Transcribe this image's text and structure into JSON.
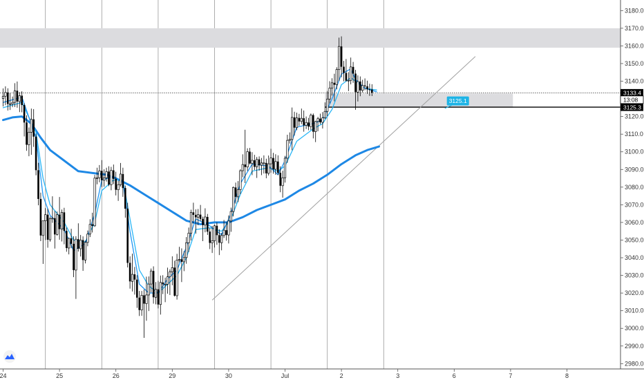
{
  "chart_data": {
    "type": "candlestick",
    "y_axis": {
      "range": [
        2977,
        3186
      ],
      "ticks": [
        2980,
        2990,
        3000,
        3010,
        3020,
        3030,
        3040,
        3050,
        3060,
        3070,
        3080,
        3090,
        3100,
        3110,
        3120,
        3130,
        3140,
        3150,
        3160,
        3170,
        3180
      ],
      "tick_labels": [
        "2980.0",
        "2990.0",
        "3000.0",
        "3010.0",
        "3020.0",
        "3030.0",
        "3040.0",
        "3050.0",
        "3060.0",
        "3070.0",
        "3080.0",
        "3090.0",
        "3100.0",
        "3110.0",
        "3120.0",
        "3130.0",
        "3140.0",
        "3150.0",
        "3160.0",
        "3170.0",
        "3180.0"
      ]
    },
    "x_axis": {
      "tick_labels": [
        "24",
        "25",
        "26",
        "29",
        "30",
        "Jul",
        "2",
        "3",
        "6",
        "7",
        "8"
      ],
      "tick_index": [
        0,
        24,
        48,
        72,
        96,
        120,
        144,
        168,
        192,
        216,
        240
      ]
    },
    "session_separators": [
      18,
      42,
      66,
      90,
      114,
      138,
      162
    ],
    "candles": [
      [
        3130.2,
        3135.9,
        3125.7,
        3131.5
      ],
      [
        3131.5,
        3137.1,
        3126.4,
        3133.6
      ],
      [
        3133.6,
        3136.0,
        3123.4,
        3127.1
      ],
      [
        3127.1,
        3133.2,
        3123.7,
        3127.2
      ],
      [
        3127.2,
        3131.3,
        3125.3,
        3128.0
      ],
      [
        3128.0,
        3138.9,
        3125.4,
        3134.6
      ],
      [
        3134.6,
        3139.8,
        3125.0,
        3128.5
      ],
      [
        3128.5,
        3133.8,
        3122.5,
        3131.8
      ],
      [
        3131.8,
        3134.3,
        3122.4,
        3126.5
      ],
      [
        3126.5,
        3127.5,
        3108.7,
        3116.6
      ],
      [
        3116.6,
        3120.7,
        3100.6,
        3104.0
      ],
      [
        3104.0,
        3113.8,
        3097.5,
        3111.1
      ],
      [
        3111.1,
        3124.5,
        3098.3,
        3118.4
      ],
      [
        3118.4,
        3124.2,
        3102.8,
        3108.6
      ],
      [
        3108.6,
        3110.2,
        3086.7,
        3089.6
      ],
      [
        3089.6,
        3093.8,
        3069.7,
        3073.3
      ],
      [
        3073.3,
        3076.9,
        3049.4,
        3052.6
      ],
      [
        3052.6,
        3060.9,
        3036.5,
        3060.9
      ],
      [
        3060.9,
        3068.1,
        3050.0,
        3064.4
      ],
      [
        3064.4,
        3067.7,
        3045.7,
        3050.2
      ],
      [
        3050.2,
        3063.3,
        3049.1,
        3062.2
      ],
      [
        3062.2,
        3074.8,
        3059.8,
        3062.4
      ],
      [
        3062.4,
        3066.5,
        3045.2,
        3053.2
      ],
      [
        3053.2,
        3066.2,
        3052.5,
        3064.4
      ],
      [
        3064.4,
        3074.4,
        3050.2,
        3056.2
      ],
      [
        3056.2,
        3067.3,
        3049.2,
        3065.7
      ],
      [
        3065.7,
        3068.3,
        3047.6,
        3055.2
      ],
      [
        3055.2,
        3057.1,
        3043.4,
        3045.5
      ],
      [
        3045.5,
        3051.3,
        3041.9,
        3051.0
      ],
      [
        3051.0,
        3056.4,
        3045.4,
        3047.9
      ],
      [
        3047.9,
        3052.2,
        3029.0,
        3033.0
      ],
      [
        3033.0,
        3052.2,
        3016.7,
        3050.5
      ],
      [
        3050.5,
        3059.5,
        3043.5,
        3045.1
      ],
      [
        3045.1,
        3052.9,
        3040.7,
        3050.0
      ],
      [
        3050.0,
        3052.1,
        3032.6,
        3038.7
      ],
      [
        3038.7,
        3049.8,
        3036.8,
        3048.7
      ],
      [
        3048.7,
        3055.4,
        3046.5,
        3053.4
      ],
      [
        3053.4,
        3061.8,
        3051.7,
        3058.9
      ],
      [
        3058.9,
        3065.5,
        3054.3,
        3058.1
      ],
      [
        3058.1,
        3086.9,
        3057.5,
        3085.1
      ],
      [
        3085.1,
        3091.0,
        3081.6,
        3085.3
      ],
      [
        3085.3,
        3092.5,
        3082.7,
        3089.2
      ],
      [
        3089.2,
        3095.3,
        3080.0,
        3083.9
      ],
      [
        3083.9,
        3090.1,
        3080.2,
        3085.3
      ],
      [
        3085.3,
        3091.0,
        3083.1,
        3088.8
      ],
      [
        3088.8,
        3091.8,
        3080.5,
        3081.4
      ],
      [
        3081.4,
        3091.5,
        3078.2,
        3089.5
      ],
      [
        3089.5,
        3092.8,
        3081.7,
        3084.7
      ],
      [
        3084.7,
        3088.7,
        3075.3,
        3078.5
      ],
      [
        3078.5,
        3083.6,
        3072.2,
        3081.4
      ],
      [
        3081.4,
        3093.7,
        3080.3,
        3087.4
      ],
      [
        3087.4,
        3091.0,
        3074.5,
        3079.5
      ],
      [
        3079.5,
        3080.9,
        3062.7,
        3067.8
      ],
      [
        3067.8,
        3071.1,
        3034.5,
        3037.1
      ],
      [
        3037.1,
        3040.8,
        3022.5,
        3026.6
      ],
      [
        3026.6,
        3042.3,
        3020.9,
        3030.6
      ],
      [
        3030.6,
        3034.8,
        3019.1,
        3027.6
      ],
      [
        3027.6,
        3030.1,
        3011.6,
        3017.4
      ],
      [
        3017.4,
        3021.2,
        3007.0,
        3010.4
      ],
      [
        3010.4,
        3021.2,
        3007.1,
        3018.7
      ],
      [
        3018.7,
        3022.0,
        2994.6,
        3014.0
      ],
      [
        3014.0,
        3029.3,
        3004.3,
        3018.9
      ],
      [
        3018.9,
        3029.4,
        3009.8,
        3025.1
      ],
      [
        3025.1,
        3033.9,
        3020.3,
        3032.5
      ],
      [
        3032.5,
        3035.1,
        3014.0,
        3017.6
      ],
      [
        3017.6,
        3026.2,
        3013.6,
        3022.1
      ],
      [
        3022.1,
        3026.9,
        3011.3,
        3013.5
      ],
      [
        3013.5,
        3029.9,
        3007.8,
        3026.0
      ],
      [
        3026.0,
        3030.1,
        3019.4,
        3025.0
      ],
      [
        3025.0,
        3028.7,
        3014.8,
        3025.0
      ],
      [
        3025.0,
        3034.4,
        3019.6,
        3029.2
      ],
      [
        3029.2,
        3033.4,
        3018.9,
        3032.0
      ],
      [
        3032.0,
        3040.8,
        3024.4,
        3034.4
      ],
      [
        3034.4,
        3038.3,
        3018.0,
        3018.5
      ],
      [
        3018.5,
        3042.2,
        3016.3,
        3038.7
      ],
      [
        3038.7,
        3046.2,
        3037.4,
        3039.1
      ],
      [
        3039.1,
        3045.3,
        3026.2,
        3037.7
      ],
      [
        3037.7,
        3043.8,
        3032.4,
        3040.1
      ],
      [
        3040.1,
        3051.7,
        3036.6,
        3048.5
      ],
      [
        3048.5,
        3057.1,
        3043.2,
        3053.9
      ],
      [
        3053.9,
        3067.2,
        3049.8,
        3065.7
      ],
      [
        3065.7,
        3071.2,
        3059.4,
        3064.3
      ],
      [
        3064.3,
        3067.4,
        3053.6,
        3062.9
      ],
      [
        3062.9,
        3067.6,
        3058.4,
        3064.4
      ],
      [
        3064.4,
        3069.9,
        3060.8,
        3062.0
      ],
      [
        3062.0,
        3063.3,
        3049.4,
        3058.5
      ],
      [
        3058.5,
        3068.0,
        3054.4,
        3063.1
      ],
      [
        3063.1,
        3064.8,
        3052.9,
        3054.8
      ],
      [
        3054.8,
        3056.8,
        3044.9,
        3048.4
      ],
      [
        3048.4,
        3058.0,
        3042.7,
        3049.6
      ],
      [
        3049.6,
        3058.7,
        3045.8,
        3058.1
      ],
      [
        3058.1,
        3060.0,
        3047.3,
        3052.8
      ],
      [
        3052.8,
        3056.1,
        3041.5,
        3048.5
      ],
      [
        3048.5,
        3054.1,
        3044.2,
        3052.6
      ],
      [
        3052.6,
        3061.4,
        3051.2,
        3055.6
      ],
      [
        3055.6,
        3060.4,
        3049.7,
        3052.9
      ],
      [
        3052.9,
        3064.0,
        3048.1,
        3060.8
      ],
      [
        3060.8,
        3068.4,
        3054.7,
        3066.2
      ],
      [
        3066.2,
        3080.4,
        3063.4,
        3079.8
      ],
      [
        3079.8,
        3082.6,
        3070.7,
        3074.5
      ],
      [
        3074.5,
        3083.4,
        3071.5,
        3078.6
      ],
      [
        3078.6,
        3090.1,
        3076.0,
        3089.3
      ],
      [
        3089.3,
        3098.6,
        3085.6,
        3092.8
      ],
      [
        3092.8,
        3112.5,
        3082.3,
        3091.4
      ],
      [
        3091.4,
        3102.0,
        3089.2,
        3100.1
      ],
      [
        3100.1,
        3102.2,
        3092.8,
        3093.4
      ],
      [
        3093.4,
        3099.8,
        3086.8,
        3095.2
      ],
      [
        3095.2,
        3098.3,
        3089.7,
        3091.5
      ],
      [
        3091.5,
        3097.1,
        3085.2,
        3095.7
      ],
      [
        3095.7,
        3097.4,
        3089.4,
        3092.4
      ],
      [
        3092.4,
        3096.5,
        3086.8,
        3093.7
      ],
      [
        3093.7,
        3098.0,
        3087.7,
        3093.7
      ],
      [
        3093.7,
        3096.1,
        3085.0,
        3087.8
      ],
      [
        3087.8,
        3097.9,
        3086.6,
        3093.2
      ],
      [
        3093.2,
        3101.7,
        3088.2,
        3096.5
      ],
      [
        3096.5,
        3099.4,
        3087.6,
        3090.1
      ],
      [
        3090.1,
        3098.6,
        3087.0,
        3094.5
      ],
      [
        3094.5,
        3098.0,
        3086.8,
        3088.1
      ],
      [
        3088.1,
        3091.8,
        3077.1,
        3080.8
      ],
      [
        3080.8,
        3089.3,
        3074.0,
        3085.3
      ],
      [
        3085.3,
        3097.7,
        3082.6,
        3096.4
      ],
      [
        3096.4,
        3109.7,
        3093.8,
        3106.5
      ],
      [
        3106.5,
        3111.0,
        3104.7,
        3107.0
      ],
      [
        3107.0,
        3125.1,
        3100.9,
        3119.5
      ],
      [
        3119.5,
        3122.7,
        3109.2,
        3113.7
      ],
      [
        3113.7,
        3122.2,
        3112.2,
        3119.2
      ],
      [
        3119.2,
        3121.5,
        3114.7,
        3117.2
      ],
      [
        3117.2,
        3124.5,
        3115.7,
        3119.0
      ],
      [
        3119.0,
        3123.4,
        3111.4,
        3115.0
      ],
      [
        3115.0,
        3120.0,
        3112.9,
        3116.6
      ],
      [
        3116.6,
        3119.2,
        3112.2,
        3114.3
      ],
      [
        3114.3,
        3121.7,
        3112.3,
        3120.8
      ],
      [
        3120.8,
        3121.7,
        3107.6,
        3111.4
      ],
      [
        3111.4,
        3117.6,
        3105.5,
        3117.2
      ],
      [
        3117.2,
        3119.8,
        3111.7,
        3118.8
      ],
      [
        3118.8,
        3121.6,
        3115.6,
        3116.7
      ],
      [
        3116.7,
        3122.5,
        3113.2,
        3119.2
      ],
      [
        3119.2,
        3128.0,
        3118.6,
        3122.9
      ],
      [
        3122.9,
        3134.5,
        3120.2,
        3129.9
      ],
      [
        3129.9,
        3140.0,
        3127.4,
        3136.1
      ],
      [
        3136.1,
        3141.7,
        3131.9,
        3139.1
      ],
      [
        3139.1,
        3144.2,
        3128.6,
        3138.0
      ],
      [
        3138.0,
        3147.9,
        3135.4,
        3146.6
      ],
      [
        3146.6,
        3164.7,
        3140.1,
        3159.7
      ],
      [
        3159.7,
        3165.4,
        3142.2,
        3148.2
      ],
      [
        3148.2,
        3151.5,
        3139.9,
        3144.7
      ],
      [
        3144.7,
        3152.6,
        3139.7,
        3140.3
      ],
      [
        3140.3,
        3145.1,
        3134.4,
        3140.5
      ],
      [
        3140.5,
        3153.4,
        3138.2,
        3148.1
      ],
      [
        3148.1,
        3150.9,
        3139.1,
        3144.3
      ],
      [
        3144.3,
        3146.4,
        3123.8,
        3133.8
      ],
      [
        3133.8,
        3143.3,
        3128.5,
        3139.8
      ],
      [
        3139.8,
        3142.7,
        3131.5,
        3134.8
      ],
      [
        3134.8,
        3140.8,
        3133.6,
        3137.6
      ],
      [
        3137.6,
        3141.6,
        3134.9,
        3137.1
      ],
      [
        3137.1,
        3140.3,
        3132.8,
        3135.4
      ],
      [
        3135.4,
        3138.6,
        3131.7,
        3135.3
      ],
      [
        3135.3,
        3138.3,
        3131.6,
        3133.4
      ]
    ],
    "ma_fast": [
      [
        0,
        3128
      ],
      [
        8,
        3131
      ],
      [
        14,
        3108
      ],
      [
        17,
        3075
      ],
      [
        20,
        3064
      ],
      [
        26,
        3056
      ],
      [
        30,
        3044
      ],
      [
        35,
        3048
      ],
      [
        39,
        3065
      ],
      [
        42,
        3084
      ],
      [
        47,
        3086
      ],
      [
        51,
        3083
      ],
      [
        54,
        3055
      ],
      [
        58,
        3025
      ],
      [
        62,
        3020
      ],
      [
        66,
        3020
      ],
      [
        70,
        3028
      ],
      [
        74,
        3033
      ],
      [
        78,
        3046
      ],
      [
        82,
        3062
      ],
      [
        88,
        3058
      ],
      [
        93,
        3053
      ],
      [
        97,
        3065
      ],
      [
        101,
        3082
      ],
      [
        106,
        3093
      ],
      [
        113,
        3092
      ],
      [
        117,
        3087
      ],
      [
        120,
        3095
      ],
      [
        125,
        3114
      ],
      [
        132,
        3116
      ],
      [
        136,
        3118
      ],
      [
        140,
        3130
      ],
      [
        144,
        3144
      ],
      [
        148,
        3147
      ],
      [
        150,
        3141
      ],
      [
        154,
        3136
      ],
      [
        159,
        3134
      ]
    ],
    "ma_slow": [
      [
        0,
        3125
      ],
      [
        8,
        3128
      ],
      [
        14,
        3111
      ],
      [
        17,
        3085
      ],
      [
        20,
        3070
      ],
      [
        26,
        3060
      ],
      [
        30,
        3050
      ],
      [
        35,
        3049
      ],
      [
        39,
        3060
      ],
      [
        42,
        3078
      ],
      [
        47,
        3084
      ],
      [
        51,
        3084
      ],
      [
        54,
        3062
      ],
      [
        58,
        3033
      ],
      [
        62,
        3024
      ],
      [
        66,
        3020
      ],
      [
        70,
        3025
      ],
      [
        74,
        3030
      ],
      [
        78,
        3040
      ],
      [
        82,
        3056
      ],
      [
        88,
        3057
      ],
      [
        93,
        3055
      ],
      [
        97,
        3062
      ],
      [
        101,
        3076
      ],
      [
        106,
        3089
      ],
      [
        113,
        3091
      ],
      [
        117,
        3089
      ],
      [
        120,
        3092
      ],
      [
        125,
        3106
      ],
      [
        132,
        3113
      ],
      [
        136,
        3116
      ],
      [
        140,
        3124
      ],
      [
        144,
        3138
      ],
      [
        148,
        3142
      ],
      [
        150,
        3140
      ],
      [
        154,
        3136
      ],
      [
        159,
        3135
      ]
    ],
    "ma_long": [
      [
        0,
        3118
      ],
      [
        4,
        3119.5
      ],
      [
        8,
        3120
      ],
      [
        12,
        3116
      ],
      [
        16,
        3108
      ],
      [
        20,
        3101
      ],
      [
        26,
        3095
      ],
      [
        32,
        3089
      ],
      [
        38,
        3088
      ],
      [
        44,
        3087
      ],
      [
        48,
        3085
      ],
      [
        54,
        3081
      ],
      [
        60,
        3076
      ],
      [
        66,
        3071
      ],
      [
        72,
        3066
      ],
      [
        78,
        3061
      ],
      [
        84,
        3059
      ],
      [
        90,
        3060
      ],
      [
        96,
        3060
      ],
      [
        102,
        3063
      ],
      [
        108,
        3067
      ],
      [
        114,
        3070
      ],
      [
        120,
        3073
      ],
      [
        126,
        3078
      ],
      [
        132,
        3082
      ],
      [
        138,
        3087
      ],
      [
        144,
        3093
      ],
      [
        150,
        3098
      ],
      [
        155,
        3101
      ],
      [
        160,
        3103
      ]
    ],
    "zones": [
      {
        "y1": 3159,
        "y2": 3170
      },
      {
        "y1": 3125,
        "y2": 3133
      }
    ],
    "zone_mid_start_index": 137,
    "zone_mid_end_index": 217,
    "trendline": {
      "from": [
        89,
        3016
      ],
      "to": [
        201,
        3154
      ]
    },
    "horizontal_level": {
      "value": 3125.3,
      "from_index": 137
    },
    "current_price_line": 3133.4,
    "price_tags": [
      {
        "label": "3133.4",
        "value": 3133.4
      },
      {
        "label": "13:08",
        "value": 3129.5
      },
      {
        "label": "3125.3",
        "value": 3125.3
      }
    ],
    "callout": {
      "label": "3125.1",
      "value": 3128.6
    },
    "colors": {
      "candle": "#000000",
      "ma_fast": "#2196f3",
      "ma_slow": "#29b6f6",
      "ma_long": "#1e88e5",
      "zone": "#dcdcdf",
      "trendline": "#a0a0a0",
      "separator": "#999999",
      "callout": "#1eb4e6"
    }
  }
}
